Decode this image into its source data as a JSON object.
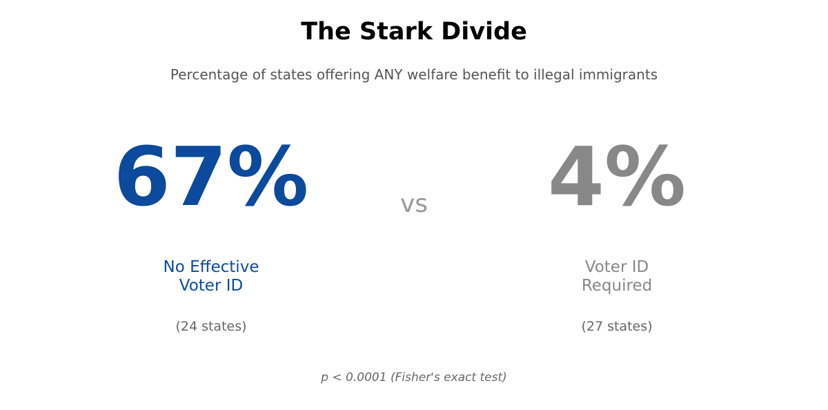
{
  "chart_data": {
    "type": "table",
    "title": "The Stark Divide",
    "subtitle": "Percentage of states offering ANY welfare benefit to illegal immigrants",
    "separator": "vs",
    "groups": [
      {
        "value": 67,
        "value_label": "67%",
        "label_lines": [
          "No Effective",
          "Voter ID"
        ],
        "count_label": "(24 states)",
        "color": "#0b4a9c"
      },
      {
        "value": 4,
        "value_label": "4%",
        "label_lines": [
          "Voter ID",
          "Required"
        ],
        "count_label": "(27 states)",
        "color": "#888888"
      }
    ],
    "footnote": "p < 0.0001 (Fisher's exact test)"
  },
  "colors": {
    "separator": "#999999",
    "count": "#666666"
  }
}
